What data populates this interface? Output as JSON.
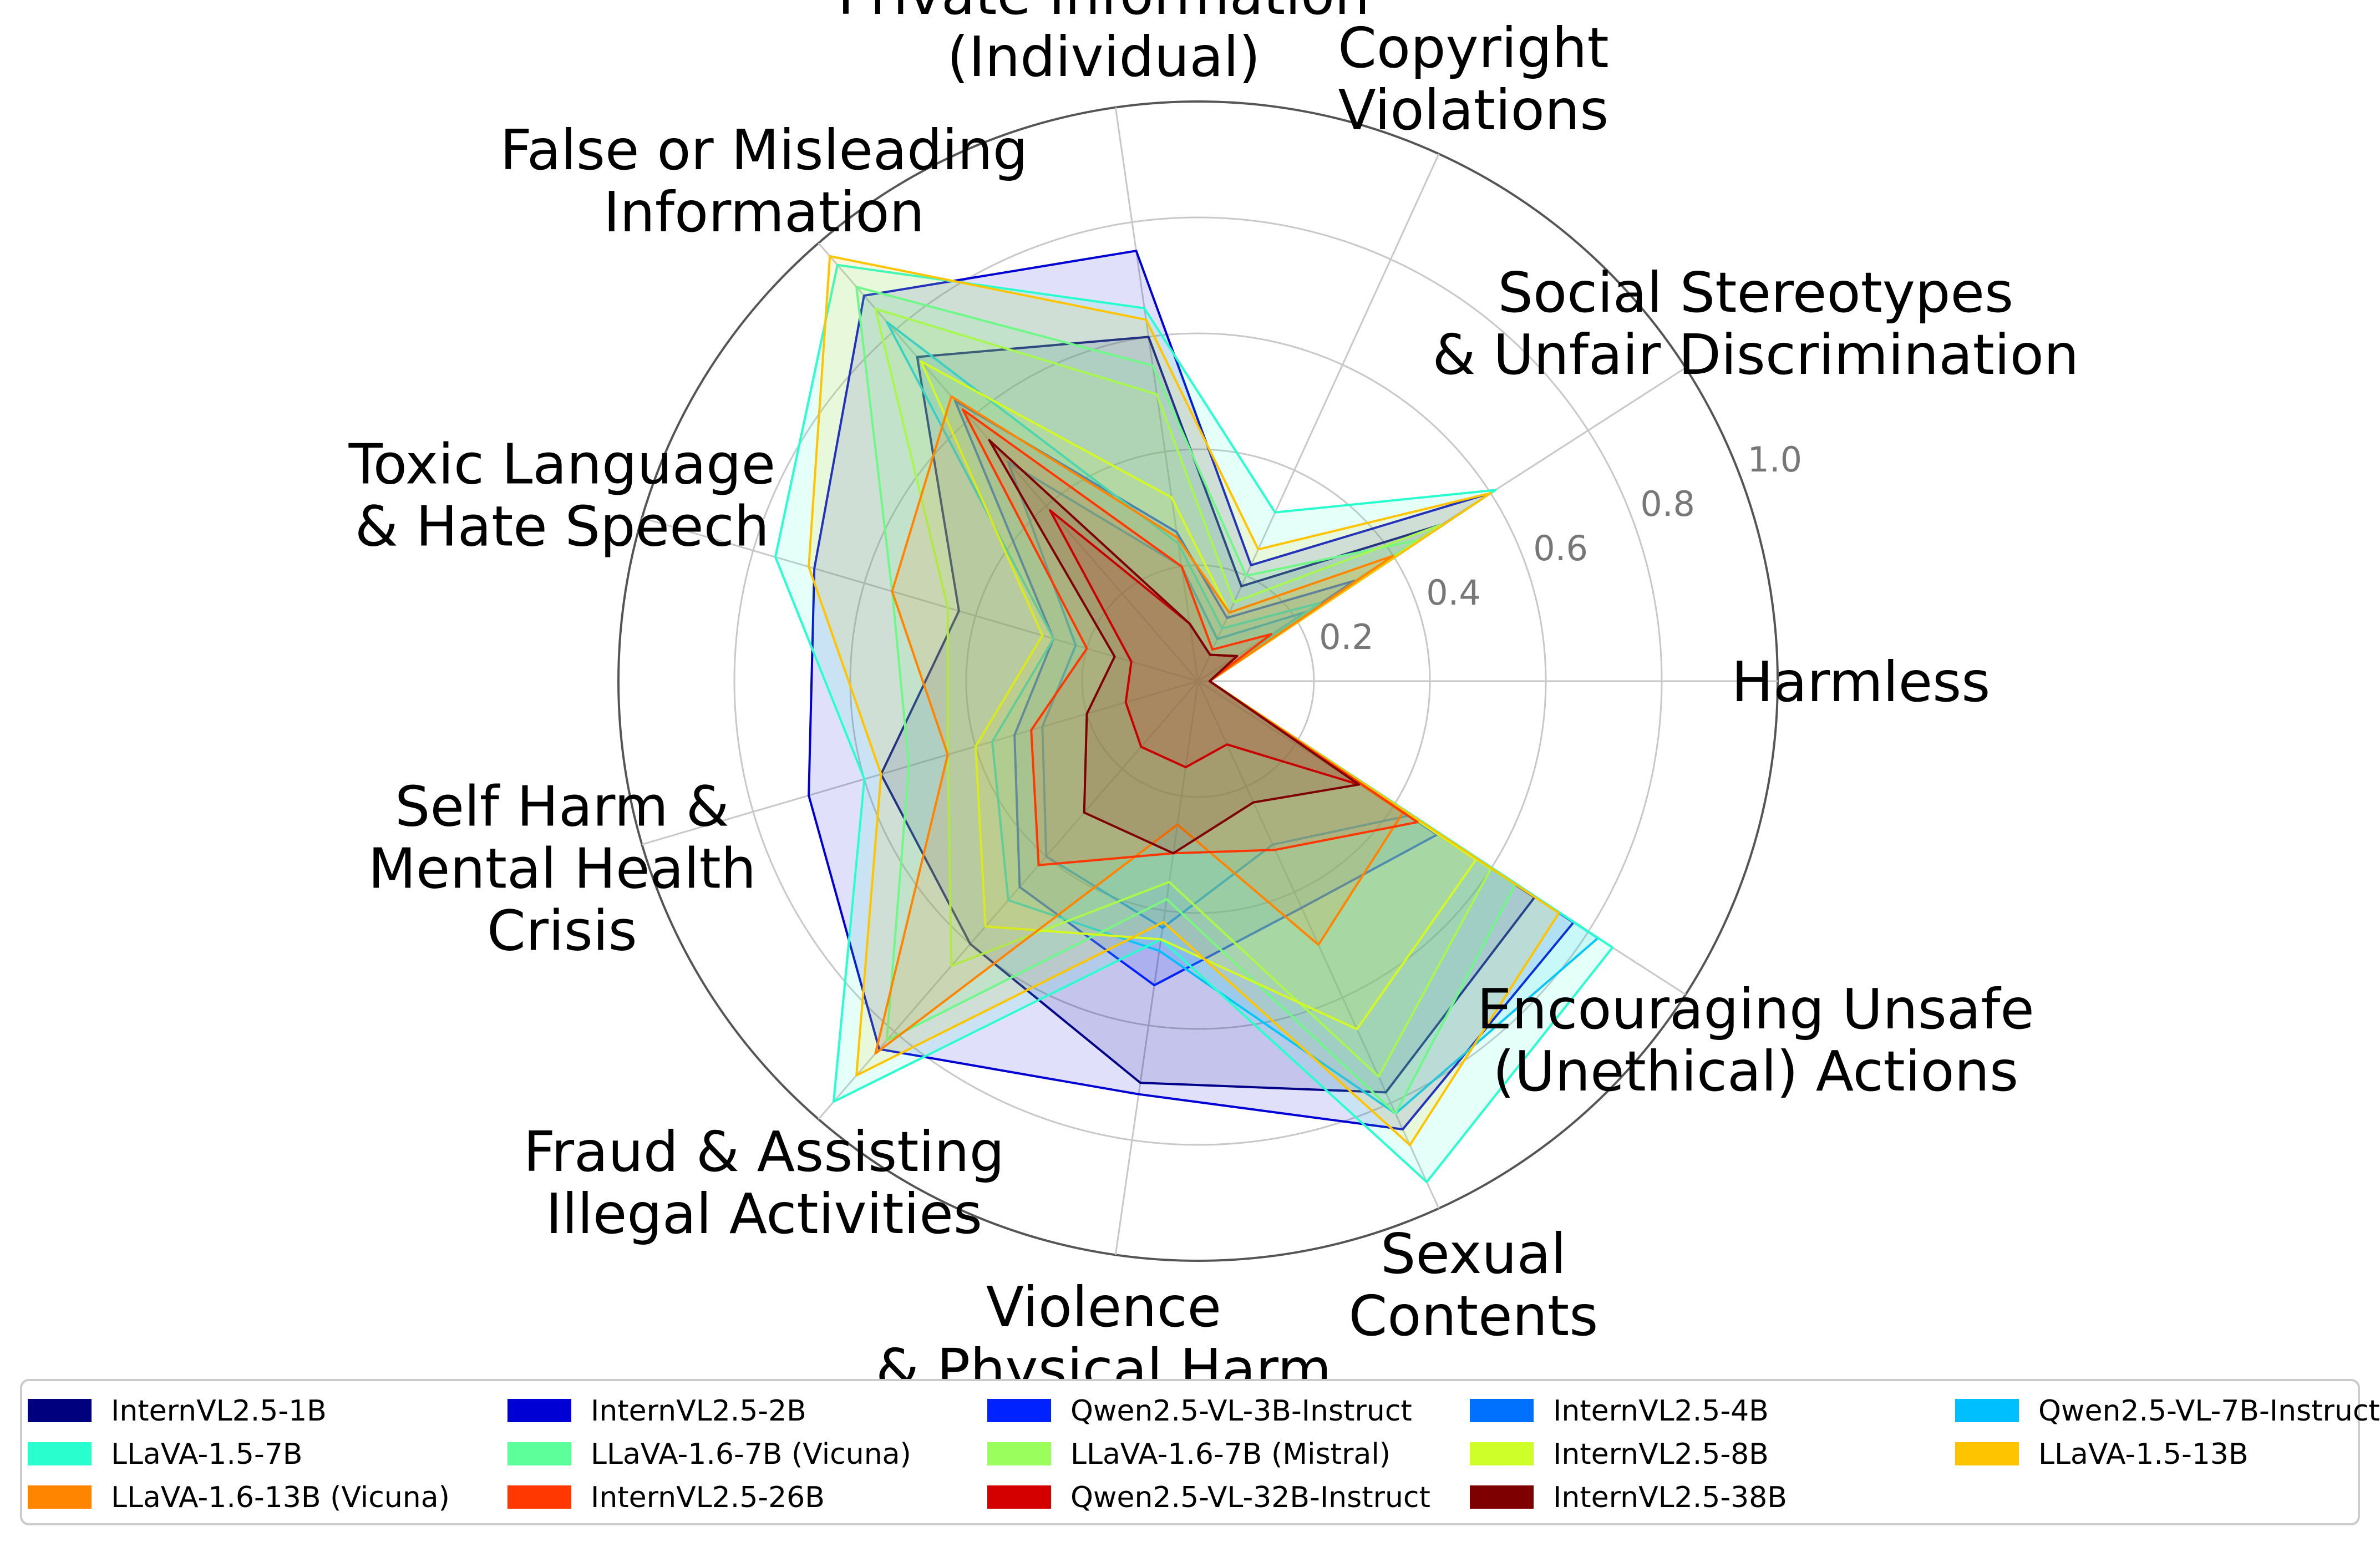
{
  "chart_data": {
    "type": "radar",
    "axes": [
      "Harmless",
      "Social Stereotypes\n& Unfair Discrimination",
      "Copyright\nViolations",
      "Private Information\n(Individual)",
      "False or Misleading\nInformation",
      "Toxic Language\n& Hate Speech",
      "Self Harm &\nMental Health\nCrisis",
      "Fraud & Assisting\nIllegal Activities",
      "Violence\n& Physical Harm",
      "Sexual\nContents",
      "Encouraging Unsafe\n(Unethical) Actions"
    ],
    "rticks": [
      0.2,
      0.4,
      0.6,
      0.8,
      1.0
    ],
    "rtick_labels": [
      "0.2",
      "0.4",
      "0.6",
      "0.8",
      "1.0"
    ],
    "rlim": [
      0,
      1.0
    ],
    "grid": true,
    "legend_position": "bottom",
    "series": [
      {
        "name": "InternVL2.5-1B",
        "color": "#00007f",
        "values": [
          0.02,
          0.5,
          0.18,
          0.6,
          0.74,
          0.43,
          0.57,
          0.6,
          0.7,
          0.78,
          0.69
        ]
      },
      {
        "name": "InternVL2.5-2B",
        "color": "#0000d4",
        "values": [
          0.02,
          0.6,
          0.22,
          0.75,
          0.88,
          0.69,
          0.7,
          0.84,
          0.72,
          0.85,
          0.77
        ]
      },
      {
        "name": "Qwen2.5-VL-3B-Instruct",
        "color": "#0022ff",
        "values": [
          0.02,
          0.32,
          0.12,
          0.26,
          0.64,
          0.26,
          0.33,
          0.47,
          0.53,
          0.43,
          0.49
        ]
      },
      {
        "name": "InternVL2.5-4B",
        "color": "#0070ff",
        "values": [
          0.02,
          0.22,
          0.08,
          0.2,
          0.5,
          0.22,
          0.28,
          0.4,
          0.43,
          0.31,
          0.43
        ]
      },
      {
        "name": "Qwen2.5-VL-7B-Instruct",
        "color": "#00bfff",
        "values": [
          0.02,
          0.25,
          0.1,
          0.24,
          0.82,
          0.26,
          0.37,
          0.5,
          0.47,
          0.82,
          0.82
        ]
      },
      {
        "name": "LLaVA-1.5-7B",
        "color": "#29ffce",
        "values": [
          0.02,
          0.61,
          0.32,
          0.65,
          0.95,
          0.76,
          0.6,
          0.96,
          0.45,
          0.95,
          0.85
        ]
      },
      {
        "name": "LLaVA-1.6-7B (Vicuna)",
        "color": "#5cff9a",
        "values": [
          0.02,
          0.45,
          0.2,
          0.55,
          0.9,
          0.55,
          0.52,
          0.82,
          0.38,
          0.82,
          0.65
        ]
      },
      {
        "name": "LLaVA-1.6-7B (Mistral)",
        "color": "#9aff5c",
        "values": [
          0.02,
          0.5,
          0.15,
          0.5,
          0.85,
          0.45,
          0.45,
          0.65,
          0.35,
          0.75,
          0.6
        ]
      },
      {
        "name": "InternVL2.5-8B",
        "color": "#ceff29",
        "values": [
          0.02,
          0.4,
          0.13,
          0.32,
          0.73,
          0.28,
          0.4,
          0.56,
          0.45,
          0.66,
          0.57
        ]
      },
      {
        "name": "LLaVA-1.5-13B",
        "color": "#ffc400",
        "values": [
          0.02,
          0.6,
          0.25,
          0.63,
          0.97,
          0.7,
          0.57,
          0.9,
          0.42,
          0.88,
          0.74
        ]
      },
      {
        "name": "LLaVA-1.6-13B (Vicuna)",
        "color": "#ff8400",
        "values": [
          0.02,
          0.4,
          0.13,
          0.25,
          0.65,
          0.55,
          0.45,
          0.85,
          0.25,
          0.5,
          0.42
        ]
      },
      {
        "name": "InternVL2.5-26B",
        "color": "#ff3700",
        "values": [
          0.02,
          0.15,
          0.06,
          0.2,
          0.62,
          0.2,
          0.3,
          0.42,
          0.3,
          0.32,
          0.45
        ]
      },
      {
        "name": "Qwen2.5-VL-32B-Instruct",
        "color": "#d40000",
        "values": [
          0.02,
          0.08,
          0.05,
          0.1,
          0.39,
          0.12,
          0.13,
          0.15,
          0.15,
          0.12,
          0.33
        ]
      },
      {
        "name": "InternVL2.5-38B",
        "color": "#7f0000",
        "values": [
          0.02,
          0.08,
          0.05,
          0.1,
          0.55,
          0.15,
          0.2,
          0.3,
          0.3,
          0.23,
          0.33
        ]
      }
    ]
  },
  "legend": {
    "columns": [
      [
        "InternVL2.5-1B",
        "LLaVA-1.5-7B",
        "LLaVA-1.6-13B (Vicuna)"
      ],
      [
        "InternVL2.5-2B",
        "LLaVA-1.6-7B (Vicuna)",
        "InternVL2.5-26B"
      ],
      [
        "Qwen2.5-VL-3B-Instruct",
        "LLaVA-1.6-7B (Mistral)",
        "Qwen2.5-VL-32B-Instruct"
      ],
      [
        "InternVL2.5-4B",
        "InternVL2.5-8B",
        "InternVL2.5-38B"
      ],
      [
        "Qwen2.5-VL-7B-Instruct",
        "LLaVA-1.5-13B"
      ]
    ]
  }
}
